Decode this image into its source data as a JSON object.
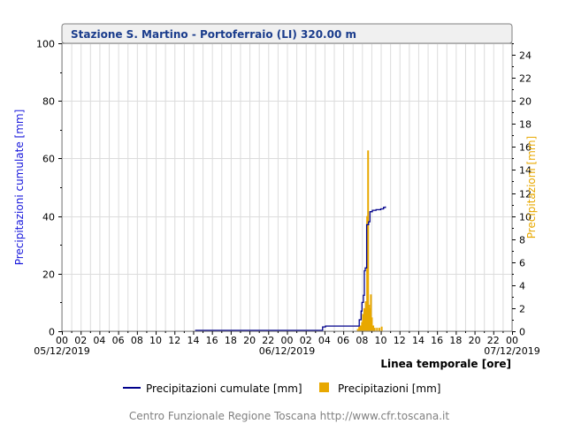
{
  "chart_data": {
    "type": "line+bar",
    "title": "Stazione S. Martino - Portoferraio (LI) 320.00 m",
    "ylabel_left": "Precipitazioni cumulate [mm]",
    "ylabel_right": "Precipitazioni [mm]",
    "xlabel": "Linea temporale [ore]",
    "ylim_left": [
      0,
      100
    ],
    "ylim_right": [
      0,
      25
    ],
    "yticks_left": [
      0,
      20,
      40,
      60,
      80,
      100
    ],
    "yticks_right": [
      0,
      2,
      4,
      6,
      8,
      10,
      12,
      14,
      16,
      18,
      20,
      22,
      24
    ],
    "xlim_hours": [
      0,
      48
    ],
    "xtick_labels": [
      "00",
      "02",
      "04",
      "06",
      "08",
      "10",
      "12",
      "14",
      "16",
      "18",
      "20",
      "22",
      "00",
      "02",
      "04",
      "06",
      "08",
      "10",
      "12",
      "14",
      "16",
      "18",
      "20",
      "22",
      "00"
    ],
    "date_labels": [
      {
        "hour": 0,
        "text": "05/12/2019"
      },
      {
        "hour": 24,
        "text": "06/12/2019"
      },
      {
        "hour": 48,
        "text": "07/12/2019"
      }
    ],
    "grid": true,
    "legend_position": "bottom",
    "series": [
      {
        "name": "Precipitazioni cumulate [mm]",
        "kind": "line",
        "color": "#00008b",
        "points": [
          [
            14.2,
            0.3
          ],
          [
            22.0,
            0.3
          ],
          [
            27.2,
            0.3
          ],
          [
            27.8,
            1.5
          ],
          [
            28.1,
            1.8
          ],
          [
            31.5,
            1.8
          ],
          [
            31.7,
            4
          ],
          [
            31.9,
            7
          ],
          [
            32.0,
            10
          ],
          [
            32.15,
            12.5
          ],
          [
            32.25,
            21
          ],
          [
            32.35,
            22
          ],
          [
            32.5,
            37
          ],
          [
            32.7,
            38
          ],
          [
            32.85,
            41.5
          ],
          [
            33.1,
            42
          ],
          [
            33.5,
            42.2
          ],
          [
            34.0,
            42.5
          ],
          [
            34.3,
            43
          ],
          [
            34.5,
            43.3
          ]
        ]
      },
      {
        "name": "Precipitazioni [mm]",
        "kind": "bar",
        "color": "#e8a800",
        "points": [
          [
            31.55,
            0.2
          ],
          [
            31.7,
            0.4
          ],
          [
            31.85,
            0.5
          ],
          [
            32.0,
            0.8
          ],
          [
            32.1,
            1.5
          ],
          [
            32.25,
            2.0
          ],
          [
            32.4,
            2.6
          ],
          [
            32.55,
            10.0
          ],
          [
            32.65,
            15.7
          ],
          [
            32.75,
            2.3
          ],
          [
            32.85,
            2.0
          ],
          [
            32.95,
            3.2
          ],
          [
            33.05,
            1.2
          ],
          [
            33.2,
            0.5
          ],
          [
            33.35,
            0.3
          ],
          [
            33.6,
            0.3
          ],
          [
            33.85,
            0.3
          ],
          [
            34.1,
            0.4
          ]
        ]
      }
    ]
  },
  "footer": "Centro Funzionale Regione Toscana http://www.cfr.toscana.it"
}
